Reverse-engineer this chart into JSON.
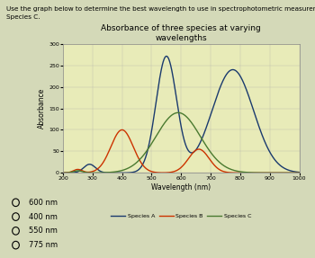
{
  "title": "Absorbance of three species at varying\nwavelengths",
  "xlabel": "Wavelength (nm)",
  "ylabel": "Absorbance",
  "xlim": [
    200,
    1000
  ],
  "ylim": [
    0,
    300
  ],
  "yticks": [
    0,
    50,
    100,
    150,
    200,
    250,
    300
  ],
  "xticks": [
    200,
    300,
    400,
    500,
    600,
    700,
    800,
    900,
    1000
  ],
  "species_a_color": "#1a3a6e",
  "species_b_color": "#cc3300",
  "species_c_color": "#4a7a30",
  "question_text1": "Use the graph below to determine the best wavelength to use in spectrophotometric measurements for",
  "question_text2": "Species C.",
  "options": [
    "600 nm",
    "400 nm",
    "550 nm",
    "775 nm"
  ],
  "bg_color": "#d4d9b8",
  "chart_bg": "#e8ebb8",
  "legend_labels": [
    "Species A",
    "Species B",
    "Species C"
  ]
}
